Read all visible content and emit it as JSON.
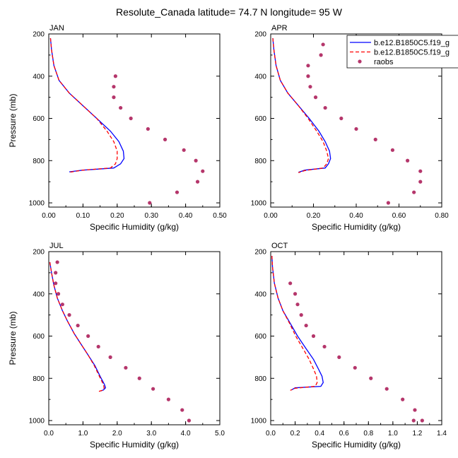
{
  "title": "Resolute_Canada  latitude= 74.7 N longitude= 95 W",
  "legend": {
    "placement": "top-right",
    "entries": [
      {
        "label": "b.e12.B1850C5.f19_g",
        "style": "solid-line",
        "color": "#0000ff"
      },
      {
        "label": "b.e12.B1850C5.f19_g",
        "style": "dashed-line",
        "color": "#ff0000"
      },
      {
        "label": "raobs",
        "style": "marker",
        "color": "#b5366b"
      }
    ]
  },
  "colors": {
    "model_1": "#0000ff",
    "model_2": "#ff0000",
    "raobs": "#b5366b"
  },
  "chart_data": [
    {
      "type": "line",
      "panel_label": "JAN",
      "xlabel": "Specific Humidity (g/kg)",
      "ylabel": "Pressure (mb)",
      "xlim": [
        0,
        0.5
      ],
      "ylim": [
        200,
        1020
      ],
      "y_inverted": true,
      "xticks": [
        "0.00",
        "0.10",
        "0.20",
        "0.30",
        "0.40",
        "0.50"
      ],
      "xtick_values": [
        0,
        0.1,
        0.2,
        0.3,
        0.4,
        0.5
      ],
      "yticks": [
        "200",
        "400",
        "600",
        "800",
        "1000"
      ],
      "ytick_values": [
        200,
        400,
        600,
        800,
        1000
      ],
      "series": [
        {
          "name": "b.e12.B1850C5.f19_g",
          "style": "solid",
          "color": "#0000ff",
          "x": [
            0.005,
            0.008,
            0.015,
            0.03,
            0.06,
            0.1,
            0.14,
            0.18,
            0.205,
            0.218,
            0.22,
            0.21,
            0.19,
            0.1,
            0.06
          ],
          "y": [
            220,
            275,
            350,
            420,
            480,
            540,
            600,
            660,
            710,
            755,
            790,
            815,
            835,
            845,
            853
          ]
        },
        {
          "name": "b.e12.B1850C5.f19_g",
          "style": "dashed",
          "color": "#ff0000",
          "x": [
            0.005,
            0.008,
            0.015,
            0.03,
            0.06,
            0.1,
            0.14,
            0.17,
            0.19,
            0.2,
            0.2,
            0.195,
            0.18,
            0.1,
            0.06
          ],
          "y": [
            220,
            275,
            350,
            420,
            480,
            540,
            600,
            660,
            710,
            755,
            790,
            815,
            835,
            845,
            855
          ]
        },
        {
          "name": "raobs",
          "style": "markers",
          "color": "#b5366b",
          "x": [
            0.195,
            0.19,
            0.19,
            0.21,
            0.24,
            0.29,
            0.34,
            0.395,
            0.43,
            0.45,
            0.435,
            0.375,
            0.295
          ],
          "y": [
            400,
            450,
            500,
            550,
            600,
            650,
            700,
            750,
            800,
            850,
            900,
            950,
            1000
          ]
        }
      ]
    },
    {
      "type": "line",
      "panel_label": "APR",
      "xlabel": "Specific Humidity (g/kg)",
      "ylabel": "",
      "xlim": [
        0,
        0.8
      ],
      "ylim": [
        200,
        1020
      ],
      "y_inverted": true,
      "xticks": [
        "0.00",
        "0.20",
        "0.40",
        "0.60",
        "0.80"
      ],
      "xtick_values": [
        0,
        0.2,
        0.4,
        0.6,
        0.8
      ],
      "yticks": [
        "200",
        "400",
        "600",
        "800",
        "1000"
      ],
      "ytick_values": [
        200,
        400,
        600,
        800,
        1000
      ],
      "series": [
        {
          "name": "b.e12.B1850C5.f19_g",
          "style": "solid",
          "color": "#0000ff",
          "x": [
            0.01,
            0.015,
            0.025,
            0.045,
            0.08,
            0.13,
            0.18,
            0.225,
            0.255,
            0.275,
            0.28,
            0.27,
            0.255,
            0.16,
            0.13
          ],
          "y": [
            220,
            275,
            350,
            420,
            480,
            540,
            600,
            660,
            710,
            755,
            790,
            815,
            835,
            845,
            855
          ]
        },
        {
          "name": "b.e12.B1850C5.f19_g",
          "style": "dashed",
          "color": "#ff0000",
          "x": [
            0.01,
            0.015,
            0.025,
            0.045,
            0.08,
            0.13,
            0.175,
            0.215,
            0.245,
            0.262,
            0.27,
            0.262,
            0.245,
            0.16,
            0.13
          ],
          "y": [
            220,
            275,
            350,
            420,
            480,
            540,
            600,
            660,
            710,
            755,
            790,
            815,
            835,
            847,
            857
          ]
        },
        {
          "name": "raobs",
          "style": "markers",
          "color": "#b5366b",
          "x": [
            0.245,
            0.235,
            0.175,
            0.175,
            0.185,
            0.21,
            0.255,
            0.33,
            0.4,
            0.49,
            0.57,
            0.64,
            0.7,
            0.7,
            0.67,
            0.55
          ],
          "y": [
            250,
            300,
            350,
            400,
            450,
            500,
            550,
            600,
            650,
            700,
            750,
            800,
            850,
            900,
            950,
            1000
          ]
        }
      ]
    },
    {
      "type": "line",
      "panel_label": "JUL",
      "xlabel": "Specific Humidity (g/kg)",
      "ylabel": "Pressure (mb)",
      "xlim": [
        0,
        5
      ],
      "ylim": [
        200,
        1020
      ],
      "y_inverted": true,
      "xticks": [
        "0.0",
        "1.0",
        "2.0",
        "3.0",
        "4.0",
        "5.0"
      ],
      "xtick_values": [
        0,
        1,
        2,
        3,
        4,
        5
      ],
      "yticks": [
        "200",
        "400",
        "600",
        "800",
        "1000"
      ],
      "ytick_values": [
        200,
        400,
        600,
        800,
        1000
      ],
      "series": [
        {
          "name": "b.e12.B1850C5.f19_g",
          "style": "solid",
          "color": "#0000ff",
          "x": [
            0.03,
            0.08,
            0.15,
            0.25,
            0.4,
            0.55,
            0.75,
            0.95,
            1.15,
            1.35,
            1.5,
            1.63,
            1.66,
            1.6,
            1.52
          ],
          "y": [
            250,
            300,
            360,
            420,
            480,
            530,
            590,
            640,
            690,
            740,
            790,
            830,
            845,
            855,
            860
          ]
        },
        {
          "name": "b.e12.B1850C5.f19_g",
          "style": "dashed",
          "color": "#ff0000",
          "x": [
            0.03,
            0.08,
            0.15,
            0.25,
            0.4,
            0.55,
            0.75,
            0.95,
            1.15,
            1.33,
            1.48,
            1.6,
            1.62,
            1.56,
            1.46
          ],
          "y": [
            250,
            300,
            360,
            420,
            480,
            530,
            590,
            640,
            690,
            740,
            790,
            830,
            845,
            857,
            862
          ]
        },
        {
          "name": "raobs",
          "style": "markers",
          "color": "#b5366b",
          "x": [
            0.25,
            0.2,
            0.2,
            0.28,
            0.4,
            0.6,
            0.85,
            1.15,
            1.45,
            1.8,
            2.25,
            2.65,
            3.05,
            3.5,
            3.9,
            4.1
          ],
          "y": [
            250,
            300,
            350,
            400,
            450,
            500,
            550,
            600,
            650,
            700,
            750,
            800,
            850,
            900,
            950,
            1000
          ]
        }
      ]
    },
    {
      "type": "line",
      "panel_label": "OCT",
      "xlabel": "Specific Humidity (g/kg)",
      "ylabel": "",
      "xlim": [
        0,
        1.4
      ],
      "ylim": [
        200,
        1020
      ],
      "y_inverted": true,
      "xticks": [
        "0.0",
        "0.2",
        "0.4",
        "0.6",
        "0.8",
        "1.0",
        "1.2",
        "1.4"
      ],
      "xtick_values": [
        0,
        0.2,
        0.4,
        0.6,
        0.8,
        1.0,
        1.2,
        1.4
      ],
      "yticks": [
        "200",
        "400",
        "600",
        "800",
        "1000"
      ],
      "ytick_values": [
        200,
        400,
        600,
        800,
        1000
      ],
      "series": [
        {
          "name": "b.e12.B1850C5.f19_g",
          "style": "solid",
          "color": "#0000ff",
          "x": [
            0.01,
            0.015,
            0.03,
            0.06,
            0.1,
            0.16,
            0.22,
            0.29,
            0.35,
            0.39,
            0.42,
            0.43,
            0.41,
            0.2,
            0.17
          ],
          "y": [
            220,
            275,
            350,
            420,
            480,
            540,
            600,
            660,
            710,
            755,
            790,
            820,
            838,
            845,
            855
          ]
        },
        {
          "name": "b.e12.B1850C5.f19_g",
          "style": "dashed",
          "color": "#ff0000",
          "x": [
            0.01,
            0.015,
            0.03,
            0.06,
            0.1,
            0.155,
            0.205,
            0.265,
            0.315,
            0.35,
            0.375,
            0.38,
            0.365,
            0.2,
            0.16
          ],
          "y": [
            220,
            275,
            350,
            420,
            480,
            540,
            600,
            660,
            710,
            755,
            790,
            820,
            838,
            847,
            857
          ]
        },
        {
          "name": "raobs",
          "style": "markers",
          "color": "#b5366b",
          "x": [
            0.16,
            0.2,
            0.22,
            0.25,
            0.29,
            0.35,
            0.44,
            0.56,
            0.69,
            0.82,
            0.95,
            1.08,
            1.18,
            1.24,
            1.17
          ],
          "y": [
            350,
            400,
            450,
            500,
            550,
            600,
            650,
            700,
            750,
            800,
            850,
            900,
            950,
            1000,
            1000
          ]
        }
      ]
    }
  ]
}
